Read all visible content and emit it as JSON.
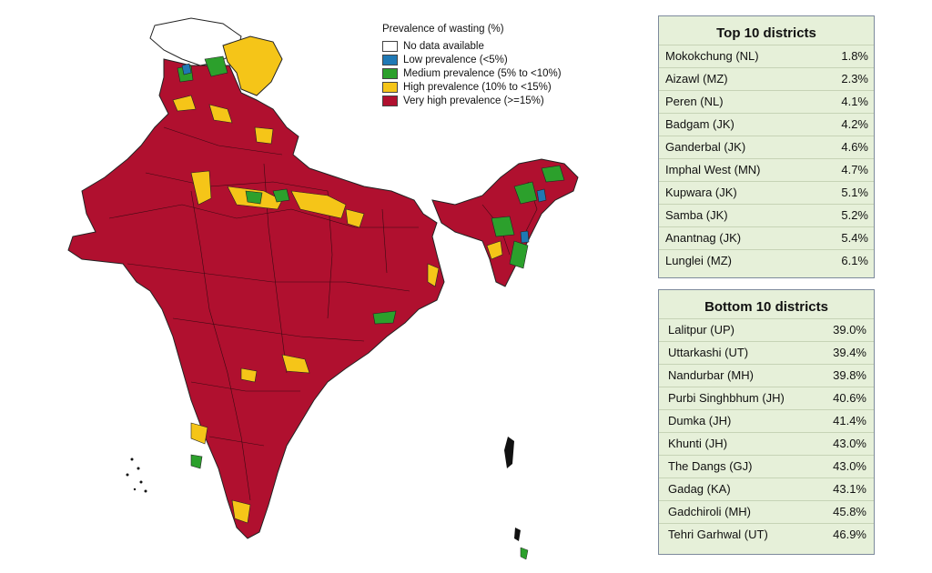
{
  "legend": {
    "title": "Prevalence of wasting (%)",
    "items": [
      {
        "label": "No data available",
        "color": "#ffffff"
      },
      {
        "label": "Low prevalence (<5%)",
        "color": "#1f78b4"
      },
      {
        "label": "Medium prevalence (5% to <10%)",
        "color": "#2ca02c"
      },
      {
        "label": "High prevalence (10% to <15%)",
        "color": "#f5c518"
      },
      {
        "label": "Very high prevalence (>=15%)",
        "color": "#b0102f"
      }
    ]
  },
  "top10": {
    "title": "Top 10 districts",
    "rows": [
      {
        "district": "Mokokchung (NL)",
        "value": "1.8%"
      },
      {
        "district": "Aizawl (MZ)",
        "value": "2.3%"
      },
      {
        "district": "Peren (NL)",
        "value": "4.1%"
      },
      {
        "district": "Badgam (JK)",
        "value": "4.2%"
      },
      {
        "district": "Ganderbal (JK)",
        "value": "4.6%"
      },
      {
        "district": "Imphal West (MN)",
        "value": "4.7%"
      },
      {
        "district": "Kupwara (JK)",
        "value": "5.1%"
      },
      {
        "district": "Samba (JK)",
        "value": "5.2%"
      },
      {
        "district": "Anantnag (JK)",
        "value": "5.4%"
      },
      {
        "district": "Lunglei (MZ)",
        "value": "6.1%"
      }
    ]
  },
  "bottom10": {
    "title": "Bottom 10 districts",
    "rows": [
      {
        "district": "Lalitpur (UP)",
        "value": "39.0%"
      },
      {
        "district": "Uttarkashi (UT)",
        "value": "39.4%"
      },
      {
        "district": "Nandurbar (MH)",
        "value": "39.8%"
      },
      {
        "district": "Purbi Singhbhum (JH)",
        "value": "40.6%"
      },
      {
        "district": "Dumka (JH)",
        "value": "41.4%"
      },
      {
        "district": "Khunti (JH)",
        "value": "43.0%"
      },
      {
        "district": "The Dangs (GJ)",
        "value": "43.0%"
      },
      {
        "district": "Gadag (KA)",
        "value": "43.1%"
      },
      {
        "district": "Gadchiroli (MH)",
        "value": "45.8%"
      },
      {
        "district": "Tehri Garhwal (UT)",
        "value": "46.9%"
      }
    ]
  }
}
